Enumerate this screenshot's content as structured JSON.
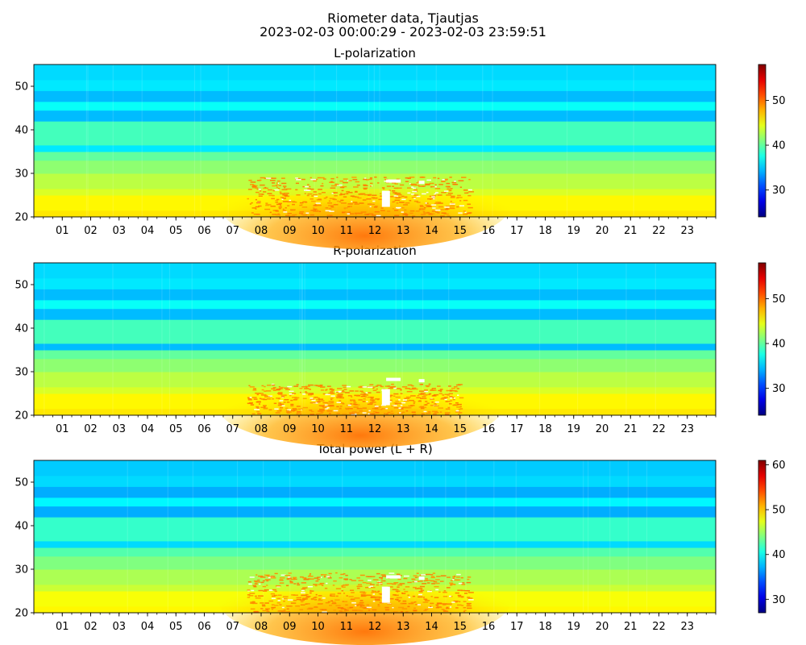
{
  "figure": {
    "title": "Riometer data, Tjautjas",
    "subtitle": "2023-02-03 00:00:29 - 2023-02-03 23:59:51"
  },
  "chart_data": [
    {
      "type": "heatmap",
      "title": "L-polarization",
      "colormap": "jet",
      "x_tick_labels": [
        "01",
        "02",
        "03",
        "04",
        "05",
        "06",
        "07",
        "08",
        "09",
        "10",
        "11",
        "12",
        "13",
        "14",
        "15",
        "16",
        "17",
        "18",
        "19",
        "20",
        "21",
        "22",
        "23"
      ],
      "x_range_hours": [
        0,
        24
      ],
      "y_ticks": [
        20,
        30,
        40,
        50
      ],
      "ylim": [
        20,
        55
      ],
      "color_range": [
        24,
        58
      ],
      "colorbar_ticks": [
        30,
        40,
        50
      ],
      "band_profile": [
        {
          "y": [
            20,
            21.5
          ],
          "value": 46
        },
        {
          "y": [
            21.5,
            25
          ],
          "value": 45.5
        },
        {
          "y": [
            25,
            26.5
          ],
          "value": 44
        },
        {
          "y": [
            26.5,
            30
          ],
          "value": 43
        },
        {
          "y": [
            30,
            33
          ],
          "value": 41.5
        },
        {
          "y": [
            33,
            35
          ],
          "value": 40
        },
        {
          "y": [
            35,
            36.5
          ],
          "value": 36
        },
        {
          "y": [
            36.5,
            42
          ],
          "value": 39
        },
        {
          "y": [
            42,
            44.5
          ],
          "value": 34.5
        },
        {
          "y": [
            44.5,
            46.5
          ],
          "value": 37
        },
        {
          "y": [
            46.5,
            49
          ],
          "value": 34.5
        },
        {
          "y": [
            49,
            51.5
          ],
          "value": 36
        },
        {
          "y": [
            51.5,
            55
          ],
          "value": 35.5
        }
      ],
      "enhancement": {
        "hours": [
          6.5,
          16.8
        ],
        "y": [
          20,
          33
        ],
        "peak_value": 50,
        "saturated_value": 58
      }
    },
    {
      "type": "heatmap",
      "title": "R-polarization",
      "colormap": "jet",
      "x_tick_labels": [
        "01",
        "02",
        "03",
        "04",
        "05",
        "06",
        "07",
        "08",
        "09",
        "10",
        "11",
        "12",
        "13",
        "14",
        "15",
        "16",
        "17",
        "18",
        "19",
        "20",
        "21",
        "22",
        "23"
      ],
      "x_range_hours": [
        0,
        24
      ],
      "y_ticks": [
        20,
        30,
        40,
        50
      ],
      "ylim": [
        20,
        55
      ],
      "color_range": [
        24,
        58
      ],
      "colorbar_ticks": [
        30,
        40,
        50
      ],
      "band_profile": [
        {
          "y": [
            20,
            21.5
          ],
          "value": 46
        },
        {
          "y": [
            21.5,
            25
          ],
          "value": 45.5
        },
        {
          "y": [
            25,
            26.5
          ],
          "value": 44
        },
        {
          "y": [
            26.5,
            30
          ],
          "value": 43
        },
        {
          "y": [
            30,
            33
          ],
          "value": 41.5
        },
        {
          "y": [
            33,
            35
          ],
          "value": 40
        },
        {
          "y": [
            35,
            36.5
          ],
          "value": 34.5
        },
        {
          "y": [
            36.5,
            42
          ],
          "value": 39
        },
        {
          "y": [
            42,
            44.5
          ],
          "value": 34.5
        },
        {
          "y": [
            44.5,
            46.5
          ],
          "value": 37
        },
        {
          "y": [
            46.5,
            49
          ],
          "value": 34.5
        },
        {
          "y": [
            49,
            51.5
          ],
          "value": 36
        },
        {
          "y": [
            51.5,
            55
          ],
          "value": 35.5
        }
      ],
      "enhancement": {
        "hours": [
          6.5,
          16.5
        ],
        "y": [
          20,
          31
        ],
        "peak_value": 50,
        "saturated_value": 58
      }
    },
    {
      "type": "heatmap",
      "title": "Total power (L + R)",
      "colormap": "jet",
      "x_tick_labels": [
        "01",
        "02",
        "03",
        "04",
        "05",
        "06",
        "07",
        "08",
        "09",
        "10",
        "11",
        "12",
        "13",
        "14",
        "15",
        "16",
        "17",
        "18",
        "19",
        "20",
        "21",
        "22",
        "23"
      ],
      "x_range_hours": [
        0,
        24
      ],
      "y_ticks": [
        20,
        30,
        40,
        50
      ],
      "ylim": [
        20,
        55
      ],
      "color_range": [
        27,
        61
      ],
      "colorbar_ticks": [
        30,
        40,
        50,
        60
      ],
      "band_profile": [
        {
          "y": [
            20,
            21.5
          ],
          "value": 48.5
        },
        {
          "y": [
            21.5,
            25
          ],
          "value": 48
        },
        {
          "y": [
            25,
            26.5
          ],
          "value": 46.5
        },
        {
          "y": [
            26.5,
            30
          ],
          "value": 45.5
        },
        {
          "y": [
            30,
            33
          ],
          "value": 44
        },
        {
          "y": [
            33,
            35
          ],
          "value": 42.5
        },
        {
          "y": [
            35,
            36.5
          ],
          "value": 38.5
        },
        {
          "y": [
            36.5,
            42
          ],
          "value": 41.5
        },
        {
          "y": [
            42,
            44.5
          ],
          "value": 37
        },
        {
          "y": [
            44.5,
            46.5
          ],
          "value": 39.5
        },
        {
          "y": [
            46.5,
            49
          ],
          "value": 37
        },
        {
          "y": [
            49,
            51.5
          ],
          "value": 38.5
        },
        {
          "y": [
            51.5,
            55
          ],
          "value": 38
        }
      ],
      "enhancement": {
        "hours": [
          6.5,
          16.8
        ],
        "y": [
          20,
          33
        ],
        "peak_value": 53,
        "saturated_value": 61
      }
    }
  ]
}
